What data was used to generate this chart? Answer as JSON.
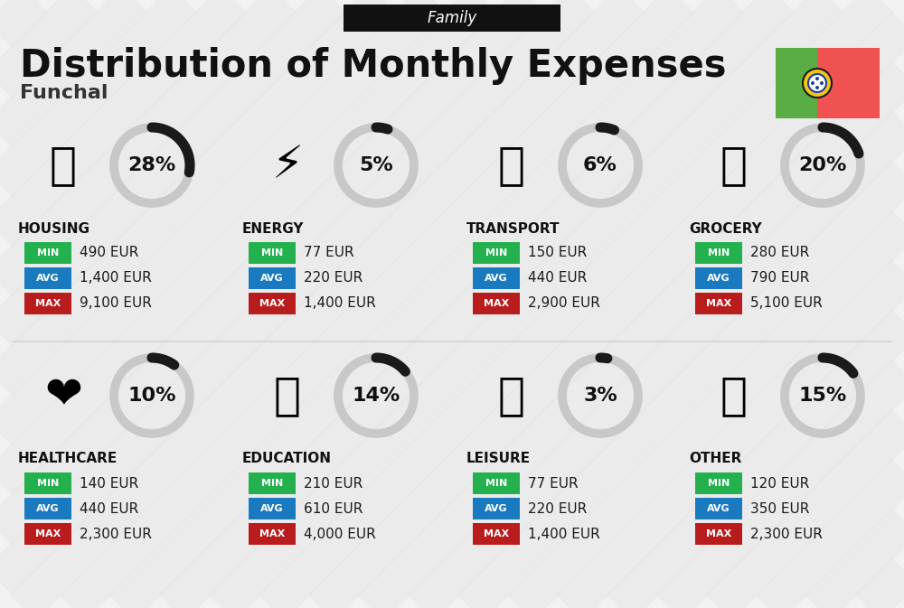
{
  "title": "Distribution of Monthly Expenses",
  "subtitle": "Family",
  "location": "Funchal",
  "bg_color": "#f2f2f2",
  "categories": [
    {
      "name": "HOUSING",
      "pct": 28,
      "min": "490 EUR",
      "avg": "1,400 EUR",
      "max": "9,100 EUR",
      "row": 0,
      "col": 0,
      "icon": "🏗"
    },
    {
      "name": "ENERGY",
      "pct": 5,
      "min": "77 EUR",
      "avg": "220 EUR",
      "max": "1,400 EUR",
      "row": 0,
      "col": 1,
      "icon": "⚡"
    },
    {
      "name": "TRANSPORT",
      "pct": 6,
      "min": "150 EUR",
      "avg": "440 EUR",
      "max": "2,900 EUR",
      "row": 0,
      "col": 2,
      "icon": "🚌"
    },
    {
      "name": "GROCERY",
      "pct": 20,
      "min": "280 EUR",
      "avg": "790 EUR",
      "max": "5,100 EUR",
      "row": 0,
      "col": 3,
      "icon": "🛒"
    },
    {
      "name": "HEALTHCARE",
      "pct": 10,
      "min": "140 EUR",
      "avg": "440 EUR",
      "max": "2,300 EUR",
      "row": 1,
      "col": 0,
      "icon": "❤"
    },
    {
      "name": "EDUCATION",
      "pct": 14,
      "min": "210 EUR",
      "avg": "610 EUR",
      "max": "4,000 EUR",
      "row": 1,
      "col": 1,
      "icon": "🎓"
    },
    {
      "name": "LEISURE",
      "pct": 3,
      "min": "77 EUR",
      "avg": "220 EUR",
      "max": "1,400 EUR",
      "row": 1,
      "col": 2,
      "icon": "🛍"
    },
    {
      "name": "OTHER",
      "pct": 15,
      "min": "120 EUR",
      "avg": "350 EUR",
      "max": "2,300 EUR",
      "row": 1,
      "col": 3,
      "icon": "💰"
    }
  ],
  "min_color": "#22b14c",
  "avg_color": "#1a7abf",
  "max_color": "#b91c1c",
  "donut_dark": "#1a1a1a",
  "donut_light": "#c8c8c8",
  "flag_green": "#5aac44",
  "flag_red": "#f05252",
  "flag_yellow": "#f5c518",
  "flag_blue": "#1a3d9c",
  "flag_white": "#ffffff"
}
